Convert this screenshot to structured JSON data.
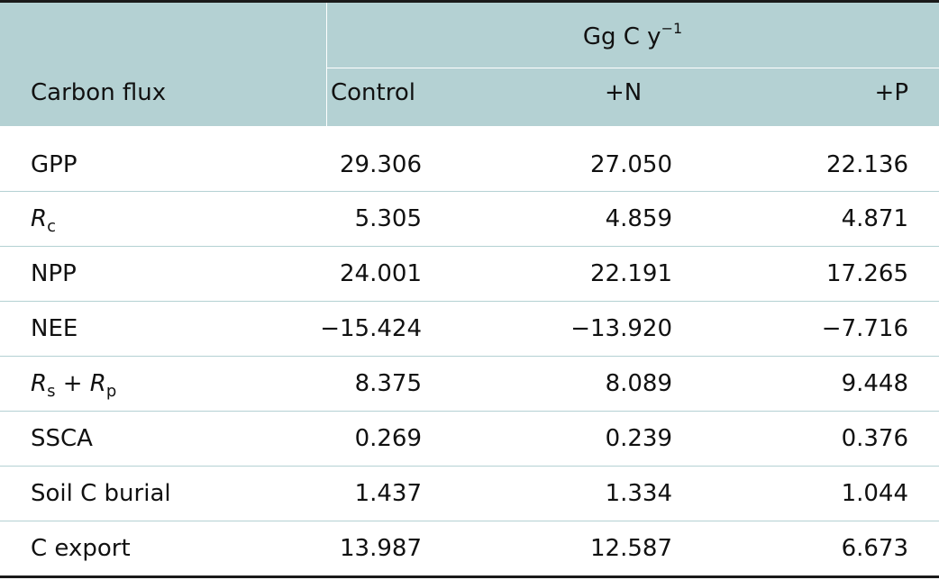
{
  "table": {
    "unit_base": "Gg C y",
    "unit_exponent": "−1",
    "headers": {
      "row_label": "Carbon flux",
      "control": "Control",
      "n": "+N",
      "p": "+P"
    },
    "rows": [
      {
        "label": "GPP",
        "control": "29.306",
        "n": "27.050",
        "p": "22.136"
      },
      {
        "label_main": "R",
        "label_sub": "c",
        "control": "5.305",
        "n": "4.859",
        "p": "4.871"
      },
      {
        "label": "NPP",
        "control": "24.001",
        "n": "22.191",
        "p": "17.265"
      },
      {
        "label": "NEE",
        "control": "−15.424",
        "n": "−13.920",
        "p": "−7.716"
      },
      {
        "label_main": "R",
        "label_sub": "s",
        "label_mid": " + ",
        "label_main2": "R",
        "label_sub2": "p",
        "control": "8.375",
        "n": "8.089",
        "p": "9.448"
      },
      {
        "label": "SSCA",
        "control": "0.269",
        "n": "0.239",
        "p": "0.376"
      },
      {
        "label": "Soil C burial",
        "control": "1.437",
        "n": "1.334",
        "p": "1.044"
      },
      {
        "label": "C export",
        "control": "13.987",
        "n": "12.587",
        "p": "6.673"
      }
    ]
  }
}
